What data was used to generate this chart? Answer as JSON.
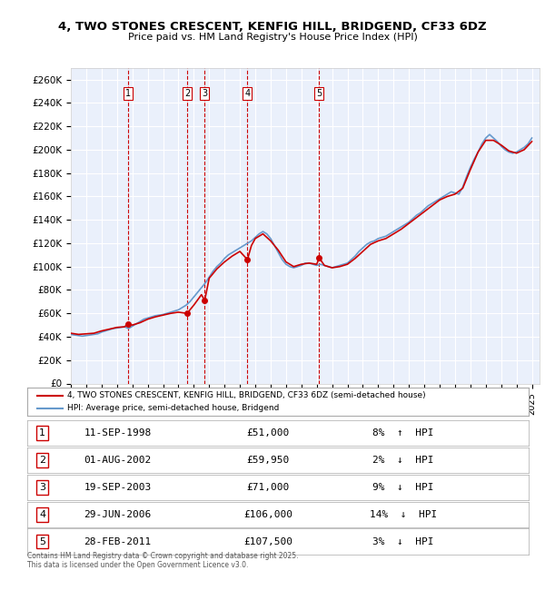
{
  "title": "4, TWO STONES CRESCENT, KENFIG HILL, BRIDGEND, CF33 6DZ",
  "subtitle": "Price paid vs. HM Land Registry's House Price Index (HPI)",
  "ylabel_ticks": [
    "£0",
    "£20K",
    "£40K",
    "£60K",
    "£80K",
    "£100K",
    "£120K",
    "£140K",
    "£160K",
    "£180K",
    "£200K",
    "£220K",
    "£240K",
    "£260K"
  ],
  "ytick_values": [
    0,
    20000,
    40000,
    60000,
    80000,
    100000,
    120000,
    140000,
    160000,
    180000,
    200000,
    220000,
    240000,
    260000
  ],
  "ylim": [
    0,
    270000
  ],
  "xlim_start": 1995.0,
  "xlim_end": 2025.5,
  "transactions": [
    {
      "num": 1,
      "date": "11-SEP-1998",
      "price": 51000,
      "pct": "8%",
      "dir": "↑",
      "year": 1998.7
    },
    {
      "num": 2,
      "date": "01-AUG-2002",
      "price": 59950,
      "pct": "2%",
      "dir": "↓",
      "year": 2002.58
    },
    {
      "num": 3,
      "date": "19-SEP-2003",
      "price": 71000,
      "pct": "9%",
      "dir": "↓",
      "year": 2003.71
    },
    {
      "num": 4,
      "date": "29-JUN-2006",
      "price": 106000,
      "pct": "14%",
      "dir": "↓",
      "year": 2006.49
    },
    {
      "num": 5,
      "date": "28-FEB-2011",
      "price": 107500,
      "pct": "3%",
      "dir": "↓",
      "year": 2011.16
    }
  ],
  "legend_property": "4, TWO STONES CRESCENT, KENFIG HILL, BRIDGEND, CF33 6DZ (semi-detached house)",
  "legend_hpi": "HPI: Average price, semi-detached house, Bridgend",
  "footer": "Contains HM Land Registry data © Crown copyright and database right 2025.\nThis data is licensed under the Open Government Licence v3.0.",
  "property_color": "#cc0000",
  "hpi_color": "#6699cc",
  "bg_color": "#ffffff",
  "plot_bg_color": "#eaf0fb",
  "grid_color": "#ffffff",
  "marker_color": "#cc0000",
  "dashed_color": "#cc0000",
  "hpi_data_x": [
    1995.0,
    1995.25,
    1995.5,
    1995.75,
    1996.0,
    1996.25,
    1996.5,
    1996.75,
    1997.0,
    1997.25,
    1997.5,
    1997.75,
    1998.0,
    1998.25,
    1998.5,
    1998.75,
    1999.0,
    1999.25,
    1999.5,
    1999.75,
    2000.0,
    2000.25,
    2000.5,
    2000.75,
    2001.0,
    2001.25,
    2001.5,
    2001.75,
    2002.0,
    2002.25,
    2002.5,
    2002.75,
    2003.0,
    2003.25,
    2003.5,
    2003.75,
    2004.0,
    2004.25,
    2004.5,
    2004.75,
    2005.0,
    2005.25,
    2005.5,
    2005.75,
    2006.0,
    2006.25,
    2006.5,
    2006.75,
    2007.0,
    2007.25,
    2007.5,
    2007.75,
    2008.0,
    2008.25,
    2008.5,
    2008.75,
    2009.0,
    2009.25,
    2009.5,
    2009.75,
    2010.0,
    2010.25,
    2010.5,
    2010.75,
    2011.0,
    2011.25,
    2011.5,
    2011.75,
    2012.0,
    2012.25,
    2012.5,
    2012.75,
    2013.0,
    2013.25,
    2013.5,
    2013.75,
    2014.0,
    2014.25,
    2014.5,
    2014.75,
    2015.0,
    2015.25,
    2015.5,
    2015.75,
    2016.0,
    2016.25,
    2016.5,
    2016.75,
    2017.0,
    2017.25,
    2017.5,
    2017.75,
    2018.0,
    2018.25,
    2018.5,
    2018.75,
    2019.0,
    2019.25,
    2019.5,
    2019.75,
    2020.0,
    2020.25,
    2020.5,
    2020.75,
    2021.0,
    2021.25,
    2021.5,
    2021.75,
    2022.0,
    2022.25,
    2022.5,
    2022.75,
    2023.0,
    2023.25,
    2023.5,
    2023.75,
    2024.0,
    2024.25,
    2024.5,
    2024.75,
    2025.0
  ],
  "hpi_data_y": [
    42000,
    41500,
    41000,
    40500,
    41000,
    41500,
    42000,
    42500,
    44000,
    45000,
    46000,
    47000,
    47500,
    48000,
    48500,
    47000,
    49000,
    51000,
    53000,
    55000,
    56000,
    57000,
    58000,
    58500,
    59000,
    60000,
    61000,
    62000,
    63000,
    65000,
    67000,
    70000,
    74000,
    78000,
    82000,
    86000,
    91000,
    96000,
    100000,
    103000,
    107000,
    110000,
    112000,
    114000,
    116000,
    118000,
    120000,
    122000,
    125000,
    128000,
    130000,
    128000,
    124000,
    118000,
    112000,
    106000,
    102000,
    100000,
    99000,
    100000,
    101000,
    103000,
    103000,
    102000,
    101000,
    102000,
    101000,
    100000,
    99000,
    100000,
    101000,
    102000,
    103000,
    106000,
    109000,
    113000,
    116000,
    119000,
    121000,
    122000,
    124000,
    125000,
    126000,
    128000,
    130000,
    132000,
    134000,
    136000,
    138000,
    141000,
    144000,
    146000,
    149000,
    152000,
    154000,
    156000,
    158000,
    160000,
    162000,
    164000,
    163000,
    162000,
    168000,
    177000,
    185000,
    192000,
    198000,
    205000,
    210000,
    213000,
    210000,
    207000,
    203000,
    200000,
    198000,
    197000,
    198000,
    200000,
    202000,
    205000,
    210000
  ],
  "property_data_x": [
    1995.0,
    1995.5,
    1996.0,
    1996.5,
    1997.0,
    1997.5,
    1998.0,
    1998.5,
    1998.7,
    1999.0,
    1999.5,
    2000.0,
    2000.5,
    2001.0,
    2001.5,
    2002.0,
    2002.58,
    2002.75,
    2003.0,
    2003.5,
    2003.71,
    2004.0,
    2004.5,
    2005.0,
    2005.5,
    2006.0,
    2006.49,
    2006.75,
    2007.0,
    2007.5,
    2008.0,
    2008.5,
    2009.0,
    2009.5,
    2010.0,
    2010.5,
    2011.0,
    2011.16,
    2011.5,
    2012.0,
    2012.5,
    2013.0,
    2013.5,
    2014.0,
    2014.5,
    2015.0,
    2015.5,
    2016.0,
    2016.5,
    2017.0,
    2017.5,
    2018.0,
    2018.5,
    2019.0,
    2019.5,
    2020.0,
    2020.5,
    2021.0,
    2021.5,
    2022.0,
    2022.5,
    2023.0,
    2023.5,
    2024.0,
    2024.5,
    2025.0
  ],
  "property_data_y": [
    43000,
    42000,
    42500,
    43000,
    45000,
    46500,
    48000,
    48500,
    51000,
    50000,
    52000,
    55000,
    57000,
    58500,
    60000,
    61000,
    59950,
    63000,
    67000,
    76000,
    71000,
    90000,
    98000,
    104000,
    109000,
    113000,
    106000,
    118000,
    124000,
    128000,
    122000,
    114000,
    104000,
    100000,
    102000,
    103000,
    102000,
    107500,
    101000,
    99000,
    100000,
    102000,
    107000,
    113000,
    119000,
    122000,
    124000,
    128000,
    132000,
    137000,
    142000,
    147000,
    152000,
    157000,
    160000,
    162000,
    167000,
    183000,
    198000,
    208000,
    208000,
    204000,
    199000,
    197000,
    200000,
    207000
  ]
}
